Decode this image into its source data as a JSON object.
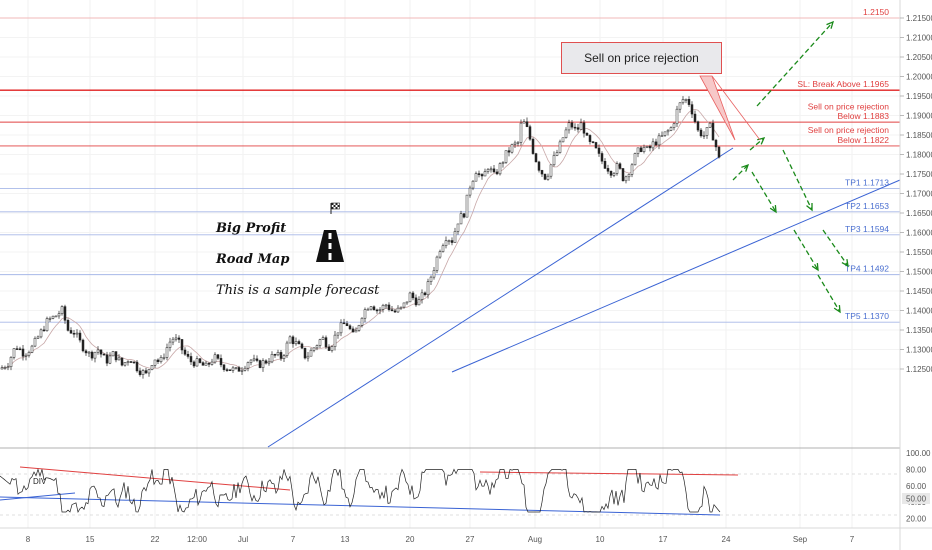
{
  "chart_data": {
    "type": "candlestick",
    "annotations": {
      "callout": "Sell on price rejection",
      "stop_loss": "SL: Break Above 1.1965",
      "sell_zone_1": "Sell  on price rejection",
      "below_1": "Below 1.1883",
      "sell_zone_2": "Sell  on price rejection",
      "below_2": "Below 1.1822",
      "target_high": "1.2150",
      "tp1": "TP1 1.1713",
      "tp2": "TP2 1.1653",
      "tp3": "TP3 1.1594",
      "tp4": "TP4 1.1492",
      "tp5": "TP5 1.1370",
      "title1": "Big Profit",
      "title2": "Road Map",
      "subtitle": "This is a sample forecast",
      "div_label": "DIV"
    },
    "levels": [
      {
        "key": "target_high",
        "price": 1.215,
        "color": "#f2b8b8",
        "text_color": "#e04040"
      },
      {
        "key": "stop_loss",
        "price": 1.1965,
        "color": "#e02020",
        "text_color": "#e04040"
      },
      {
        "key": "below_1",
        "price": 1.1883,
        "color": "#e04040",
        "text_color": "#e04040"
      },
      {
        "key": "below_2",
        "price": 1.1822,
        "color": "#e04040",
        "text_color": "#e04040"
      },
      {
        "key": "tp1",
        "price": 1.1713,
        "color": "#a7b8e8",
        "text_color": "#4a6fd0"
      },
      {
        "key": "tp2",
        "price": 1.1653,
        "color": "#a7b8e8",
        "text_color": "#4a6fd0"
      },
      {
        "key": "tp3",
        "price": 1.1594,
        "color": "#a7b8e8",
        "text_color": "#4a6fd0"
      },
      {
        "key": "tp4",
        "price": 1.1492,
        "color": "#a7b8e8",
        "text_color": "#4a6fd0"
      },
      {
        "key": "tp5",
        "price": 1.137,
        "color": "#a7b8e8",
        "text_color": "#4a6fd0"
      }
    ],
    "x_ticks": [
      "8",
      "15",
      "22",
      "12:00",
      "Jul",
      "7",
      "13",
      "20",
      "27",
      "Aug",
      "10",
      "17",
      "24",
      "Sep",
      "7"
    ],
    "y_ticks": [
      "1.21500",
      "1.21000",
      "1.20500",
      "1.20000",
      "1.19500",
      "1.19000",
      "1.18500",
      "1.18000",
      "1.17500",
      "1.17000",
      "1.16500",
      "1.16000",
      "1.15500",
      "1.15000",
      "1.14500",
      "1.14000",
      "1.13500",
      "1.13000",
      "1.12500"
    ],
    "y_range": [
      1.122,
      1.218
    ],
    "rsi": {
      "y_ticks": [
        "100.00",
        "80.00",
        "60.00",
        "40.00",
        "20.00"
      ],
      "current_label": "50.00",
      "range": [
        10,
        100
      ]
    },
    "price_path": [
      [
        0,
        1.125
      ],
      [
        8,
        1.1265
      ],
      [
        16,
        1.131
      ],
      [
        24,
        1.129
      ],
      [
        32,
        1.1305
      ],
      [
        40,
        1.134
      ],
      [
        48,
        1.1375
      ],
      [
        55,
        1.1385
      ],
      [
        62,
        1.14
      ],
      [
        68,
        1.135
      ],
      [
        74,
        1.1345
      ],
      [
        82,
        1.131
      ],
      [
        90,
        1.1285
      ],
      [
        98,
        1.13
      ],
      [
        106,
        1.127
      ],
      [
        114,
        1.129
      ],
      [
        122,
        1.126
      ],
      [
        130,
        1.128
      ],
      [
        138,
        1.125
      ],
      [
        146,
        1.1235
      ],
      [
        154,
        1.128
      ],
      [
        160,
        1.1265
      ],
      [
        166,
        1.13
      ],
      [
        172,
        1.133
      ],
      [
        178,
        1.132
      ],
      [
        184,
        1.129
      ],
      [
        190,
        1.127
      ],
      [
        198,
        1.1265
      ],
      [
        206,
        1.1255
      ],
      [
        214,
        1.128
      ],
      [
        222,
        1.126
      ],
      [
        230,
        1.125
      ],
      [
        236,
        1.1245
      ],
      [
        242,
        1.1255
      ],
      [
        250,
        1.1275
      ],
      [
        258,
        1.126
      ],
      [
        266,
        1.127
      ],
      [
        274,
        1.1285
      ],
      [
        282,
        1.128
      ],
      [
        290,
        1.133
      ],
      [
        298,
        1.131
      ],
      [
        306,
        1.128
      ],
      [
        314,
        1.1305
      ],
      [
        322,
        1.133
      ],
      [
        330,
        1.1305
      ],
      [
        338,
        1.135
      ],
      [
        346,
        1.137
      ],
      [
        354,
        1.133
      ],
      [
        362,
        1.139
      ],
      [
        370,
        1.142
      ],
      [
        378,
        1.14
      ],
      [
        386,
        1.1415
      ],
      [
        394,
        1.1395
      ],
      [
        402,
        1.1405
      ],
      [
        410,
        1.144
      ],
      [
        418,
        1.142
      ],
      [
        426,
        1.145
      ],
      [
        434,
        1.151
      ],
      [
        440,
        1.156
      ],
      [
        446,
        1.159
      ],
      [
        452,
        1.158
      ],
      [
        458,
        1.163
      ],
      [
        464,
        1.165
      ],
      [
        470,
        1.172
      ],
      [
        476,
        1.176
      ],
      [
        482,
        1.1735
      ],
      [
        488,
        1.177
      ],
      [
        494,
        1.1745
      ],
      [
        500,
        1.177
      ],
      [
        506,
        1.18
      ],
      [
        512,
        1.182
      ],
      [
        518,
        1.183
      ],
      [
        522,
        1.189
      ],
      [
        528,
        1.186
      ],
      [
        534,
        1.18
      ],
      [
        540,
        1.176
      ],
      [
        546,
        1.174
      ],
      [
        552,
        1.178
      ],
      [
        558,
        1.181
      ],
      [
        564,
        1.185
      ],
      [
        570,
        1.188
      ],
      [
        576,
        1.186
      ],
      [
        582,
        1.188
      ],
      [
        588,
        1.183
      ],
      [
        594,
        1.182
      ],
      [
        600,
        1.179
      ],
      [
        606,
        1.177
      ],
      [
        612,
        1.1755
      ],
      [
        618,
        1.177
      ],
      [
        624,
        1.1735
      ],
      [
        630,
        1.1765
      ],
      [
        636,
        1.18
      ],
      [
        642,
        1.182
      ],
      [
        648,
        1.181
      ],
      [
        654,
        1.183
      ],
      [
        660,
        1.184
      ],
      [
        666,
        1.1855
      ],
      [
        672,
        1.187
      ],
      [
        678,
        1.192
      ],
      [
        684,
        1.1945
      ],
      [
        690,
        1.193
      ],
      [
        694,
        1.1895
      ],
      [
        698,
        1.186
      ],
      [
        704,
        1.185
      ],
      [
        710,
        1.187
      ],
      [
        714,
        1.184
      ],
      [
        718,
        1.18
      ],
      [
        720,
        1.1775
      ]
    ]
  }
}
